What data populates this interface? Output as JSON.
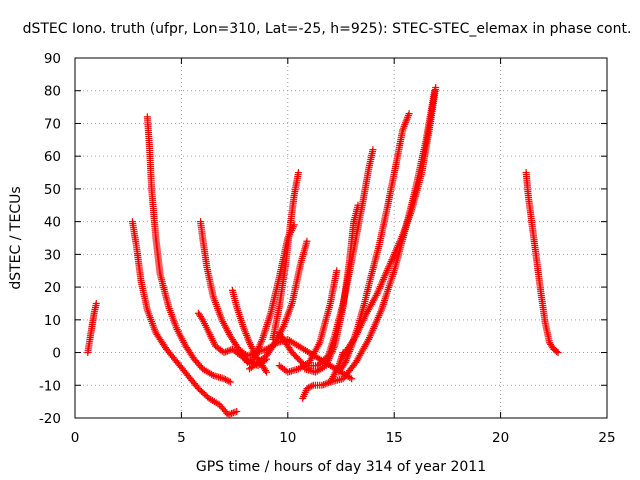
{
  "chart_data": {
    "type": "scatter",
    "title": "dSTEC Iono. truth (ufpr, Lon=310, Lat=-25, h=925): STEC-STEC_elemax in phase cont.",
    "xlabel": "GPS time / hours of day 314 of year 2011",
    "ylabel": "dSTEC  / TECUs",
    "xlim": [
      0,
      25
    ],
    "ylim": [
      -20,
      90
    ],
    "xticks": [
      0,
      5,
      10,
      15,
      20,
      25
    ],
    "yticks": [
      -20,
      -10,
      0,
      10,
      20,
      30,
      40,
      50,
      60,
      70,
      80,
      90
    ],
    "grid": true,
    "marker": "+",
    "color": "#ff0000",
    "series": [
      {
        "x": [
          0.6,
          0.7,
          0.8,
          0.9,
          1.0
        ],
        "y": [
          0,
          4,
          8,
          12,
          15
        ]
      },
      {
        "x": [
          2.7,
          2.9,
          3.1,
          3.4,
          3.8,
          4.3,
          4.8,
          5.3,
          5.8,
          6.3,
          6.8,
          7.2,
          7.6
        ],
        "y": [
          40,
          32,
          22,
          13,
          6,
          1,
          -3,
          -7,
          -11,
          -14,
          -16,
          -19,
          -18
        ]
      },
      {
        "x": [
          3.4,
          3.5,
          3.6,
          3.8,
          4.0,
          4.4,
          4.8,
          5.2,
          5.6,
          6.0,
          6.5,
          7.0,
          7.3
        ],
        "y": [
          72,
          63,
          50,
          35,
          24,
          14,
          7,
          2,
          -2,
          -5,
          -7,
          -8,
          -9
        ]
      },
      {
        "x": [
          5.8,
          6.0,
          6.3,
          6.6,
          7.0,
          7.4,
          7.8,
          8.2,
          8.6,
          9.0
        ],
        "y": [
          12,
          10,
          6,
          2,
          0,
          1,
          -1,
          -3,
          -4,
          -2
        ]
      },
      {
        "x": [
          5.9,
          6.0,
          6.2,
          6.5,
          6.9,
          7.3,
          7.7,
          8.1,
          8.5,
          9.0,
          9.5,
          10.0,
          10.5,
          11.0,
          11.5,
          12.0,
          12.5,
          13.0
        ],
        "y": [
          40,
          35,
          26,
          17,
          10,
          5,
          1,
          -1,
          0,
          1,
          3,
          4,
          2,
          0,
          -2,
          -4,
          -6,
          -8
        ]
      },
      {
        "x": [
          7.4,
          7.6,
          7.9,
          8.2,
          8.5,
          8.8,
          9.0
        ],
        "y": [
          19,
          14,
          8,
          3,
          -1,
          -4,
          -6
        ]
      },
      {
        "x": [
          7.8,
          8.1,
          8.4,
          8.8,
          9.2,
          9.6,
          10.0,
          10.3
        ],
        "y": [
          0,
          -3,
          -2,
          4,
          12,
          23,
          35,
          39
        ]
      },
      {
        "x": [
          8.2,
          8.6,
          9.0,
          9.4,
          9.8,
          10.2,
          10.6,
          10.9
        ],
        "y": [
          -5,
          -3,
          -1,
          3,
          8,
          15,
          27,
          34
        ]
      },
      {
        "x": [
          9.3,
          9.6,
          9.9,
          10.1,
          10.3,
          10.5
        ],
        "y": [
          4,
          14,
          27,
          38,
          48,
          55
        ]
      },
      {
        "x": [
          9.6,
          10.0,
          10.5,
          11.0,
          11.5,
          12.0,
          12.3
        ],
        "y": [
          -4,
          -6,
          -5,
          -3,
          3,
          15,
          25
        ]
      },
      {
        "x": [
          10.7,
          10.9,
          11.2,
          11.6,
          12.0,
          12.4,
          12.6
        ],
        "y": [
          -14,
          -11,
          -10,
          -10,
          -9,
          -4,
          0
        ]
      },
      {
        "x": [
          10.8,
          11.3,
          11.8,
          12.2,
          12.6,
          12.9,
          13.1,
          13.3
        ],
        "y": [
          -5,
          -6,
          -4,
          2,
          14,
          28,
          40,
          45
        ]
      },
      {
        "x": [
          9.6,
          10.2,
          10.8,
          11.4,
          11.9,
          12.2,
          12.6,
          13.0,
          13.5,
          13.8,
          14.0
        ],
        "y": [
          6,
          0,
          -4,
          -4,
          -1,
          5,
          15,
          28,
          45,
          56,
          62
        ]
      },
      {
        "x": [
          12.4,
          12.7,
          13.0,
          13.3,
          13.6,
          13.9,
          14.3,
          14.7,
          15.1,
          15.4,
          15.7
        ],
        "y": [
          -6,
          -3,
          2,
          8,
          15,
          23,
          33,
          45,
          58,
          68,
          73
        ]
      },
      {
        "x": [
          12.0,
          12.6,
          13.2,
          13.8,
          14.4,
          15.0,
          15.5,
          16.0,
          16.5,
          16.9
        ],
        "y": [
          -9,
          -8,
          -3,
          4,
          13,
          25,
          37,
          50,
          65,
          80
        ]
      },
      {
        "x": [
          12.6,
          13.2,
          13.7,
          14.2,
          14.6,
          15.0,
          15.4,
          15.8,
          16.3,
          16.7,
          16.95
        ],
        "y": [
          -1,
          5,
          12,
          18,
          24,
          30,
          36,
          43,
          55,
          70,
          81
        ]
      },
      {
        "x": [
          21.2,
          21.3,
          21.5,
          21.7,
          21.9,
          22.1,
          22.3,
          22.5,
          22.7
        ],
        "y": [
          55,
          48,
          38,
          28,
          18,
          9,
          3,
          1,
          0
        ]
      }
    ]
  }
}
